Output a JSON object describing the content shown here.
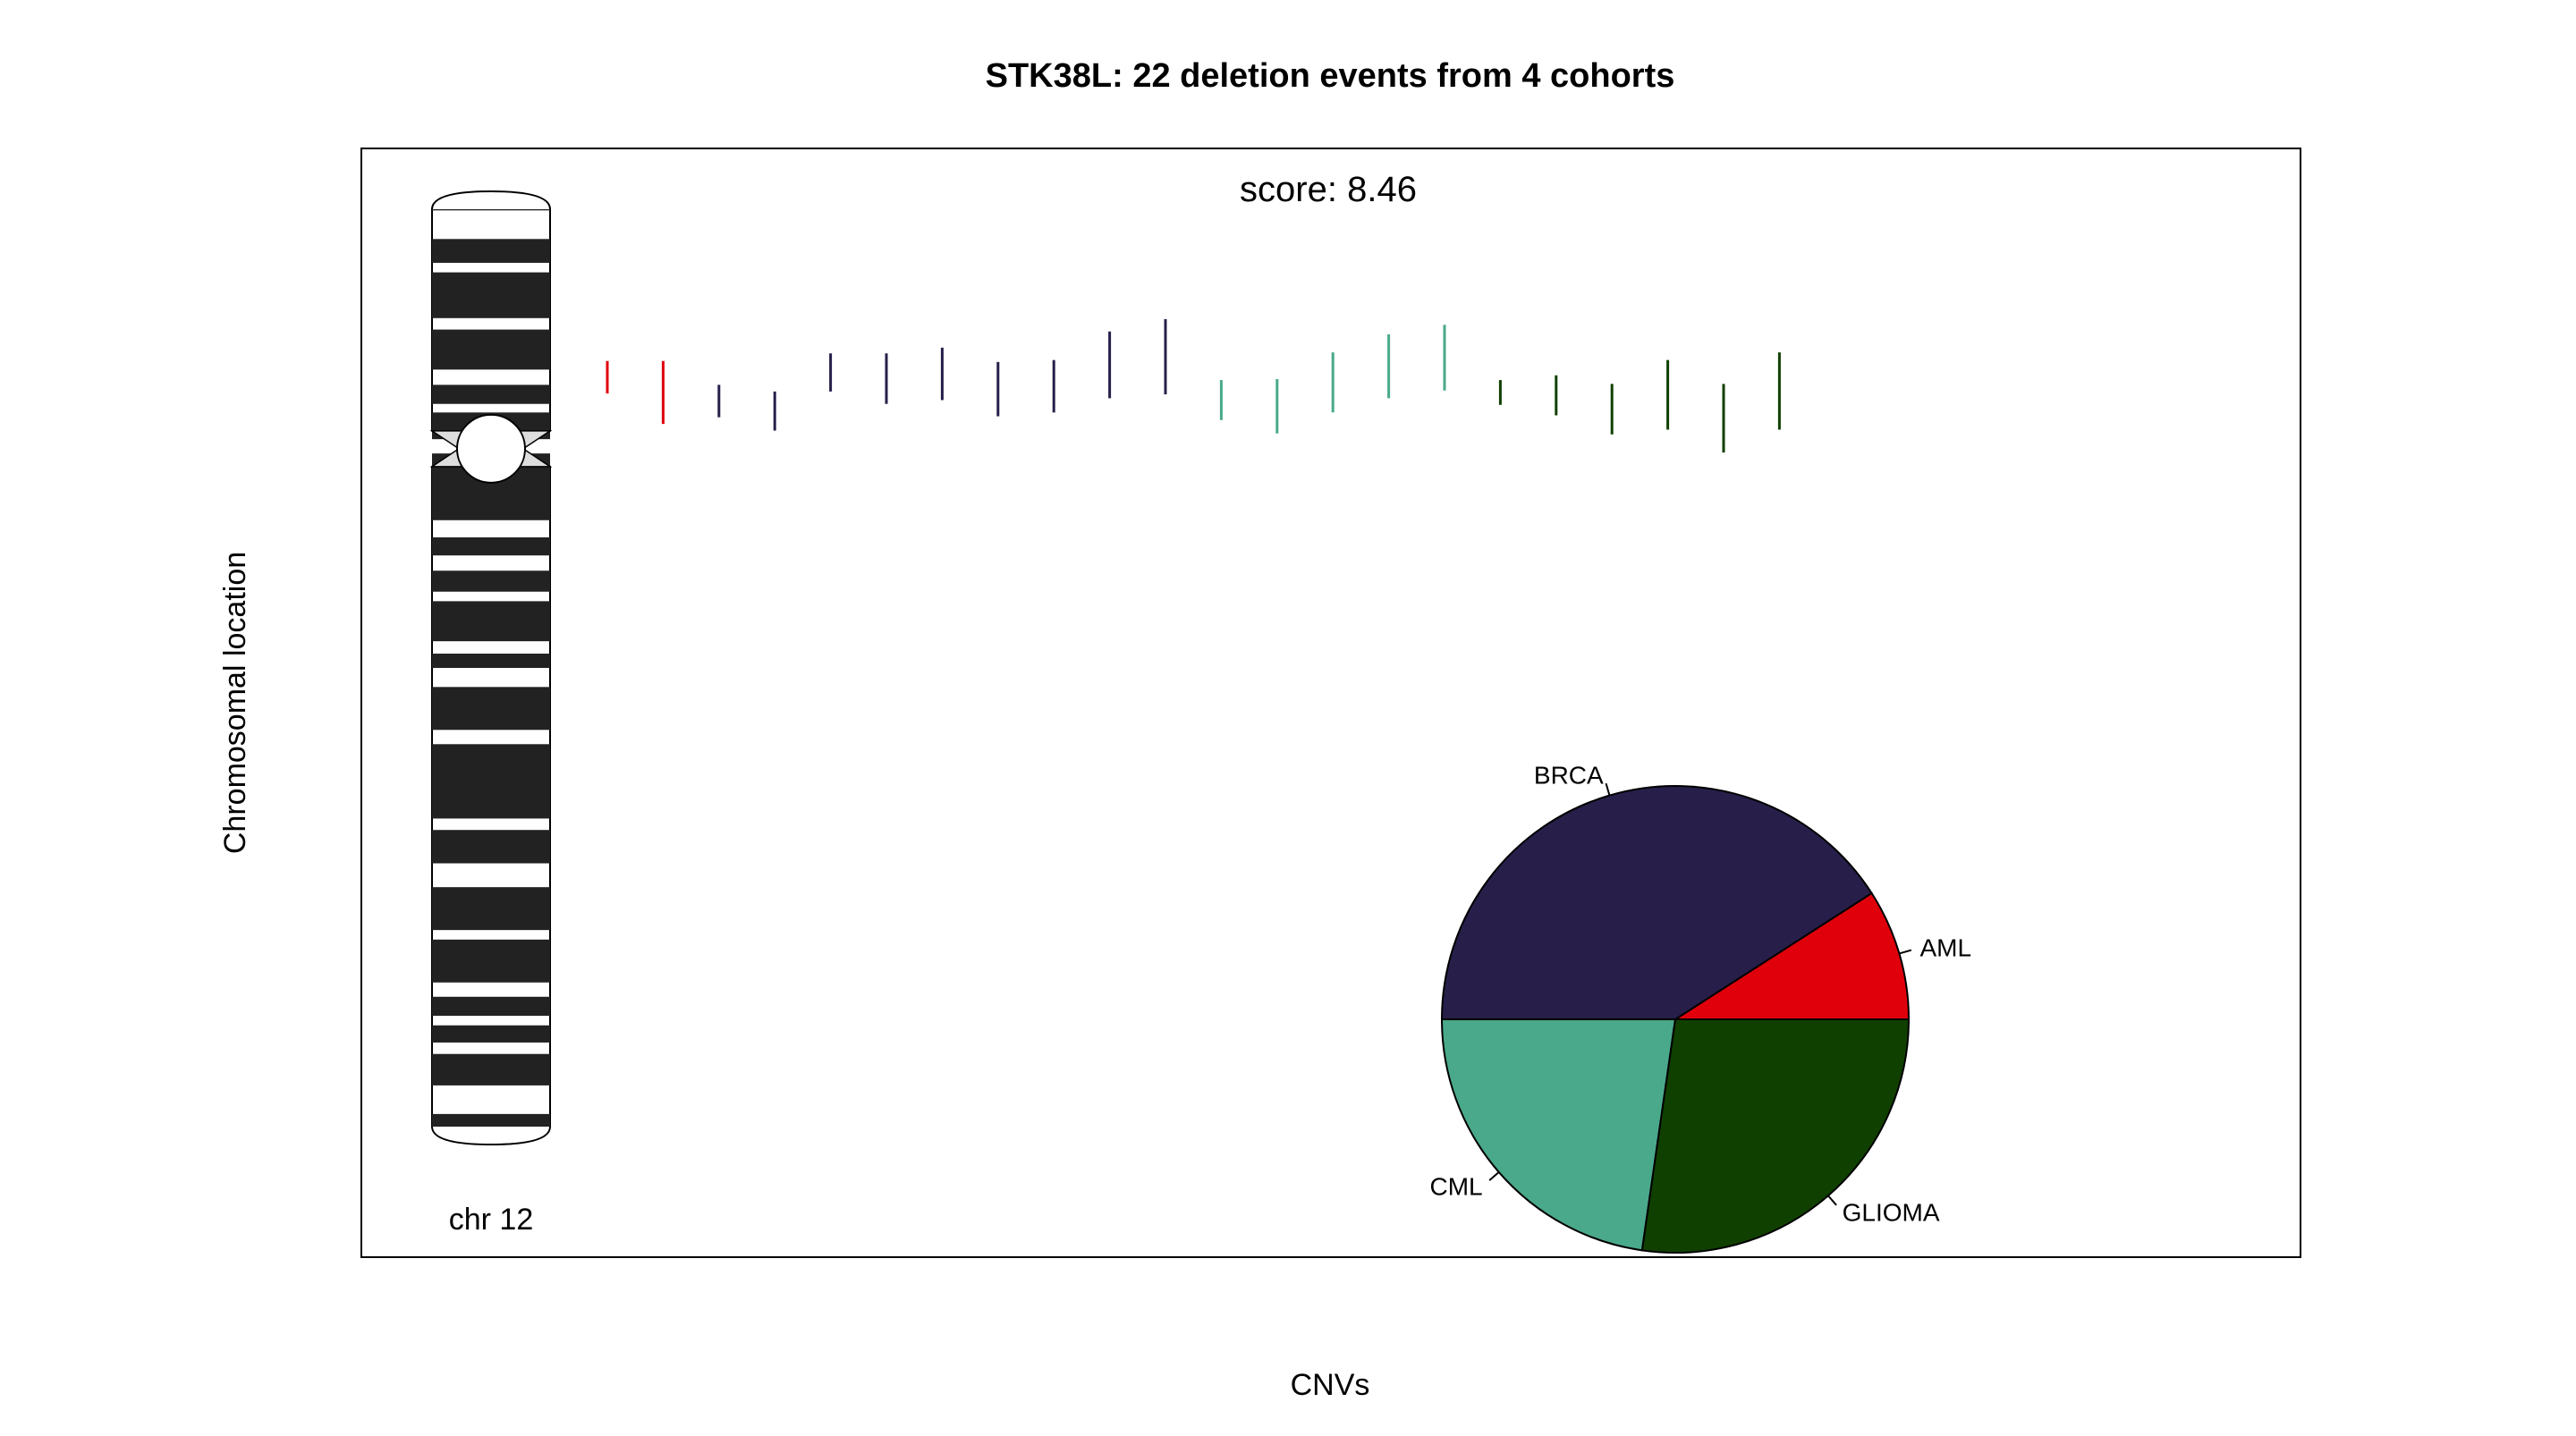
{
  "chart_data": {
    "type": "cnv_chromosome_plot",
    "title": "STK38L: 22 deletion events from 4 cohorts",
    "xlabel": "CNVs",
    "ylabel": "Chromosomal location",
    "score_text": "score:  8.46",
    "chromosome_label": "chr 12",
    "series_colors": {
      "AML": "#e0000b",
      "BRCA": "#271f4a",
      "CML": "#4aa98a",
      "GLIOMA": "#104000"
    },
    "cnv_events": [
      {
        "cohort": "AML",
        "start": 0.178,
        "end": 0.212
      },
      {
        "cohort": "AML",
        "start": 0.178,
        "end": 0.244
      },
      {
        "cohort": "BRCA",
        "start": 0.203,
        "end": 0.237
      },
      {
        "cohort": "BRCA",
        "start": 0.21,
        "end": 0.251
      },
      {
        "cohort": "BRCA",
        "start": 0.17,
        "end": 0.21
      },
      {
        "cohort": "BRCA",
        "start": 0.17,
        "end": 0.223
      },
      {
        "cohort": "BRCA",
        "start": 0.164,
        "end": 0.219
      },
      {
        "cohort": "BRCA",
        "start": 0.179,
        "end": 0.236
      },
      {
        "cohort": "BRCA",
        "start": 0.177,
        "end": 0.232
      },
      {
        "cohort": "BRCA",
        "start": 0.147,
        "end": 0.217
      },
      {
        "cohort": "BRCA",
        "start": 0.134,
        "end": 0.213
      },
      {
        "cohort": "CML",
        "start": 0.198,
        "end": 0.24
      },
      {
        "cohort": "CML",
        "start": 0.197,
        "end": 0.254
      },
      {
        "cohort": "CML",
        "start": 0.169,
        "end": 0.232
      },
      {
        "cohort": "CML",
        "start": 0.15,
        "end": 0.217
      },
      {
        "cohort": "CML",
        "start": 0.14,
        "end": 0.209
      },
      {
        "cohort": "GLIOMA",
        "start": 0.198,
        "end": 0.224
      },
      {
        "cohort": "GLIOMA",
        "start": 0.193,
        "end": 0.235
      },
      {
        "cohort": "GLIOMA",
        "start": 0.202,
        "end": 0.255
      },
      {
        "cohort": "GLIOMA",
        "start": 0.177,
        "end": 0.25
      },
      {
        "cohort": "GLIOMA",
        "start": 0.202,
        "end": 0.274
      },
      {
        "cohort": "GLIOMA",
        "start": 0.169,
        "end": 0.25
      }
    ],
    "pie": {
      "slices": [
        {
          "label": "AML",
          "value": 2
        },
        {
          "label": "BRCA",
          "value": 9
        },
        {
          "label": "CML",
          "value": 5
        },
        {
          "label": "GLIOMA",
          "value": 6
        }
      ]
    },
    "ideogram": {
      "centromere": 0.27,
      "bands": [
        [
          0.0,
          0.02
        ],
        [
          0.05,
          0.075
        ],
        [
          0.085,
          0.133
        ],
        [
          0.145,
          0.187
        ],
        [
          0.203,
          0.223
        ],
        [
          0.232,
          0.26
        ],
        [
          0.275,
          0.345
        ],
        [
          0.363,
          0.382
        ],
        [
          0.398,
          0.42
        ],
        [
          0.43,
          0.472
        ],
        [
          0.485,
          0.5
        ],
        [
          0.52,
          0.565
        ],
        [
          0.58,
          0.658
        ],
        [
          0.67,
          0.705
        ],
        [
          0.73,
          0.775
        ],
        [
          0.785,
          0.83
        ],
        [
          0.845,
          0.865
        ],
        [
          0.875,
          0.893
        ],
        [
          0.905,
          0.938
        ],
        [
          0.968,
          0.995
        ]
      ]
    }
  }
}
